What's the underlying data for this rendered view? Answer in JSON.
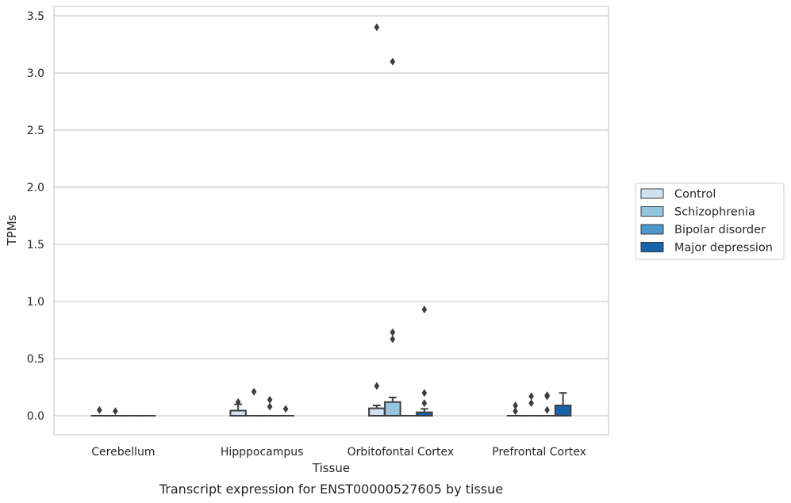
{
  "caption": "Transcript expression for ENST00000527605 by tissue",
  "chart_data": {
    "type": "box",
    "xlabel": "Tissue",
    "ylabel": "TPMs",
    "ylim": [
      -0.17,
      3.57
    ],
    "yticks": [
      0.0,
      0.5,
      1.0,
      1.5,
      2.0,
      2.5,
      3.0,
      3.5
    ],
    "ytick_labels": [
      "0.0",
      "0.5",
      "1.0",
      "1.5",
      "2.0",
      "2.5",
      "3.0",
      "3.5"
    ],
    "grid": "horizontal",
    "legend_position": "right",
    "categories": [
      "Cerebellum",
      "Hipppocampus",
      "Orbitofontal Cortex",
      "Prefrontal Cortex"
    ],
    "series": [
      {
        "name": "Control",
        "color": "#d0e1f2",
        "boxes": [
          {
            "q1": 0,
            "median": 0,
            "q3": 0,
            "whisker_low": 0,
            "whisker_high": 0,
            "outliers": [
              0.05
            ]
          },
          {
            "q1": 0,
            "median": 0,
            "q3": 0.045,
            "whisker_low": 0,
            "whisker_high": 0.1,
            "outliers": [
              0.12
            ]
          },
          {
            "q1": 0,
            "median": 0,
            "q3": 0.065,
            "whisker_low": 0,
            "whisker_high": 0.09,
            "outliers": [
              0.26,
              3.4
            ]
          },
          {
            "q1": 0,
            "median": 0,
            "q3": 0,
            "whisker_low": 0,
            "whisker_high": 0,
            "outliers": [
              0.04,
              0.09
            ]
          }
        ]
      },
      {
        "name": "Schizophrenia",
        "color": "#94c4df",
        "boxes": [
          {
            "q1": 0,
            "median": 0,
            "q3": 0,
            "whisker_low": 0,
            "whisker_high": 0,
            "outliers": [
              0.04
            ]
          },
          {
            "q1": 0,
            "median": 0,
            "q3": 0,
            "whisker_low": 0,
            "whisker_high": 0,
            "outliers": [
              0.21
            ]
          },
          {
            "q1": 0,
            "median": 0,
            "q3": 0.12,
            "whisker_low": 0,
            "whisker_high": 0.16,
            "outliers": [
              0.67,
              0.73,
              3.1
            ]
          },
          {
            "q1": 0,
            "median": 0,
            "q3": 0,
            "whisker_low": 0,
            "whisker_high": 0,
            "outliers": [
              0.11,
              0.17
            ]
          }
        ]
      },
      {
        "name": "Bipolar disorder",
        "color": "#4a98c9",
        "boxes": [
          {
            "q1": 0,
            "median": 0,
            "q3": 0,
            "whisker_low": 0,
            "whisker_high": 0,
            "outliers": []
          },
          {
            "q1": 0,
            "median": 0,
            "q3": 0,
            "whisker_low": 0,
            "whisker_high": 0,
            "outliers": [
              0.08,
              0.14
            ]
          },
          {
            "q1": 0,
            "median": 0,
            "q3": 0,
            "whisker_low": 0,
            "whisker_high": 0,
            "outliers": []
          },
          {
            "q1": 0,
            "median": 0,
            "q3": 0,
            "whisker_low": 0,
            "whisker_high": 0,
            "outliers": [
              0.05,
              0.17,
              0.18
            ]
          }
        ]
      },
      {
        "name": "Major depression",
        "color": "#1764ab",
        "boxes": [
          {
            "q1": 0,
            "median": 0,
            "q3": 0,
            "whisker_low": 0,
            "whisker_high": 0,
            "outliers": []
          },
          {
            "q1": 0,
            "median": 0,
            "q3": 0,
            "whisker_low": 0,
            "whisker_high": 0,
            "outliers": [
              0.06
            ]
          },
          {
            "q1": 0,
            "median": 0,
            "q3": 0.03,
            "whisker_low": 0,
            "whisker_high": 0.06,
            "outliers": [
              0.11,
              0.2,
              0.93
            ]
          },
          {
            "q1": 0,
            "median": 0,
            "q3": 0.09,
            "whisker_low": 0,
            "whisker_high": 0.2,
            "outliers": []
          }
        ]
      }
    ]
  }
}
